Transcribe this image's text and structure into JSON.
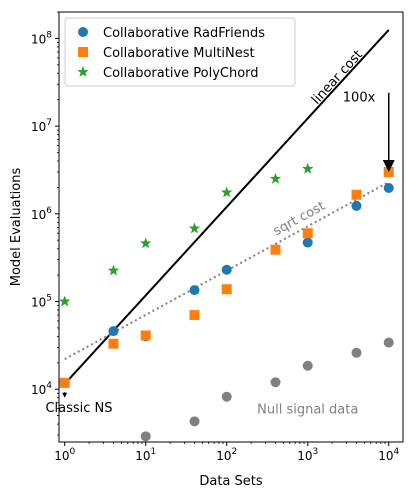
{
  "chart_data": {
    "type": "scatter",
    "title": "",
    "xlabel": "Data Sets",
    "ylabel": "Model Evaluations",
    "xscale": "log",
    "yscale": "log",
    "xlim": [
      0.85,
      15000
    ],
    "ylim": [
      2500,
      200000000
    ],
    "x_ticks": [
      {
        "value": 1,
        "base": "10",
        "exp": "0"
      },
      {
        "value": 10,
        "base": "10",
        "exp": "1"
      },
      {
        "value": 100,
        "base": "10",
        "exp": "2"
      },
      {
        "value": 1000,
        "base": "10",
        "exp": "3"
      },
      {
        "value": 10000,
        "base": "10",
        "exp": "4"
      }
    ],
    "y_ticks": [
      {
        "value": 10000,
        "base": "10",
        "exp": "4"
      },
      {
        "value": 100000,
        "base": "10",
        "exp": "5"
      },
      {
        "value": 1000000,
        "base": "10",
        "exp": "6"
      },
      {
        "value": 10000000,
        "base": "10",
        "exp": "7"
      },
      {
        "value": 100000000,
        "base": "10",
        "exp": "8"
      }
    ],
    "grid": false,
    "legend_position": "top-left",
    "series": [
      {
        "name": "Collaborative RadFriends",
        "marker": "circle",
        "color": "#1f77b4",
        "points": [
          [
            1,
            11800
          ],
          [
            4,
            46000
          ],
          [
            10,
            40000
          ],
          [
            40,
            135000
          ],
          [
            100,
            230000
          ],
          [
            400,
            390000
          ],
          [
            1000,
            470000
          ],
          [
            4000,
            1230000
          ],
          [
            10000,
            1970000
          ]
        ]
      },
      {
        "name": "Collaborative MultiNest",
        "marker": "square",
        "color": "#ff7f0e",
        "points": [
          [
            1,
            11800
          ],
          [
            4,
            33000
          ],
          [
            10,
            41000
          ],
          [
            40,
            70000
          ],
          [
            100,
            138000
          ],
          [
            400,
            390000
          ],
          [
            1000,
            600000
          ],
          [
            4000,
            1650000
          ],
          [
            10000,
            3000000
          ]
        ]
      },
      {
        "name": "Collaborative PolyChord",
        "marker": "star",
        "color": "#2ca02c",
        "points": [
          [
            1,
            100000
          ],
          [
            4,
            225000
          ],
          [
            10,
            460000
          ],
          [
            40,
            680000
          ],
          [
            100,
            1750000
          ],
          [
            400,
            2500000
          ],
          [
            1000,
            3250000
          ]
        ]
      },
      {
        "marker": "circle",
        "color": "#808080",
        "points": [
          [
            10,
            2900
          ],
          [
            40,
            4300
          ],
          [
            100,
            8200
          ],
          [
            400,
            12000
          ],
          [
            1000,
            18500
          ],
          [
            4000,
            26000
          ],
          [
            10000,
            34000
          ]
        ]
      }
    ],
    "reference_lines": [
      {
        "label": "linear cost",
        "style": "solid",
        "color": "#000000",
        "from": [
          1,
          11500
        ],
        "to": [
          10000,
          125000000
        ]
      },
      {
        "label": "sqrt cost",
        "style": "dotted",
        "color": "#808080",
        "from": [
          1,
          22000
        ],
        "to": [
          10000,
          2300000
        ]
      }
    ],
    "annotations": [
      {
        "text": "100x",
        "x": 4300,
        "y": 19000000,
        "color": "#000000"
      },
      {
        "text": "Classic NS",
        "x": 1.5,
        "y": 5500,
        "color": "#000000"
      },
      {
        "text": "Null signal data",
        "x": 1000,
        "y": 5300,
        "color": "#808080"
      }
    ],
    "arrows": [
      {
        "from": [
          10000,
          24000000
        ],
        "to": [
          10000,
          3000000
        ],
        "color": "#000000"
      },
      {
        "from": [
          1,
          9300
        ],
        "to": [
          1,
          8000
        ],
        "color": "#000000"
      }
    ]
  }
}
